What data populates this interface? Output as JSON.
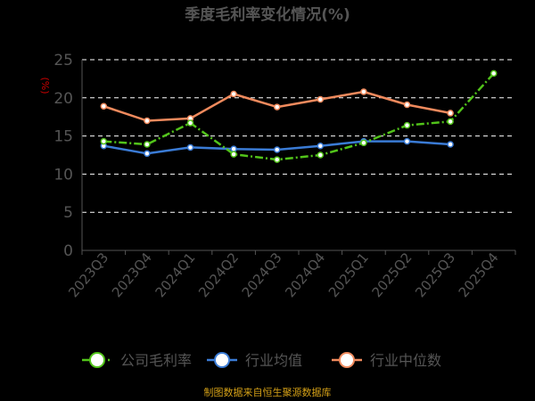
{
  "chart_data": {
    "type": "line",
    "title": "季度毛利率变化情况(%)",
    "ylabel": "(%)",
    "xlabel": "",
    "ylim": [
      0,
      25
    ],
    "yticks": [
      0,
      5,
      10,
      15,
      20,
      25
    ],
    "grid": true,
    "legend_position": "bottom",
    "categories": [
      "2023Q3",
      "2023Q4",
      "2024Q1",
      "2024Q2",
      "2024Q3",
      "2024Q4",
      "2025Q1",
      "2025Q2",
      "2025Q3",
      "2025Q4"
    ],
    "series": [
      {
        "name": "公司毛利率",
        "color": "#52c41a",
        "dashed": true,
        "values": [
          14.3,
          13.9,
          16.7,
          12.6,
          11.9,
          12.5,
          14.1,
          16.4,
          16.9,
          23.2
        ]
      },
      {
        "name": "行业均值",
        "color": "#3a7bd5",
        "dashed": false,
        "values": [
          13.7,
          12.7,
          13.5,
          13.3,
          13.2,
          13.7,
          14.3,
          14.3,
          13.9,
          null
        ]
      },
      {
        "name": "行业中位数",
        "color": "#f08a5d",
        "dashed": false,
        "values": [
          18.9,
          17.0,
          17.3,
          20.5,
          18.8,
          19.8,
          20.8,
          19.1,
          18.0,
          null
        ]
      }
    ],
    "source": "制图数据来自恒生聚源数据库"
  },
  "colors": {
    "background": "#000000",
    "title": "#555555",
    "ylabel": "#cc0000",
    "axis_text": "#555555",
    "grid": "#ffffff",
    "source": "#d4a017"
  }
}
